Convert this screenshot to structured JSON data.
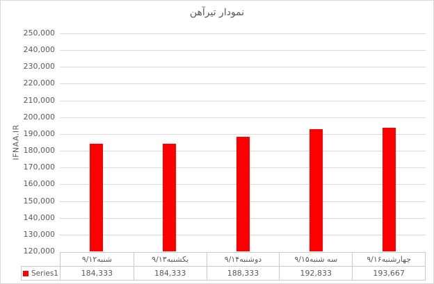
{
  "chart_data": {
    "type": "bar",
    "title": "نمودار تیرآهن",
    "ylabel": "IFNAA.IR",
    "xlabel": "",
    "categories": [
      "شنبه۹/۱۲",
      "یکشنبه۹/۱۳",
      "دوشنبه۹/۱۴",
      "سه شنبه۹/۱۵",
      "چهارشنبه۹/۱۶"
    ],
    "series": [
      {
        "name": "Series1",
        "values": [
          184333,
          184333,
          188333,
          192833,
          193667
        ],
        "color": "#FF0000"
      }
    ],
    "value_labels": [
      "184,333",
      "184,333",
      "188,333",
      "192,833",
      "193,667"
    ],
    "ylim": [
      120000,
      250000
    ],
    "ytick_step": 10000,
    "ytick_labels": [
      "250,000",
      "240,000",
      "230,000",
      "220,000",
      "210,000",
      "200,000",
      "190,000",
      "180,000",
      "170,000",
      "160,000",
      "150,000",
      "140,000",
      "130,000",
      "120,000"
    ],
    "grid": true,
    "legend_position": "bottom-left-data-table",
    "has_data_table": true
  },
  "colors": {
    "bar": "#FF0000",
    "gridline": "#D9D9D9",
    "table_border": "#C9C9C9",
    "text": "#595959",
    "background": "#FFFFFF",
    "chart_border": "#D9D9D9"
  }
}
